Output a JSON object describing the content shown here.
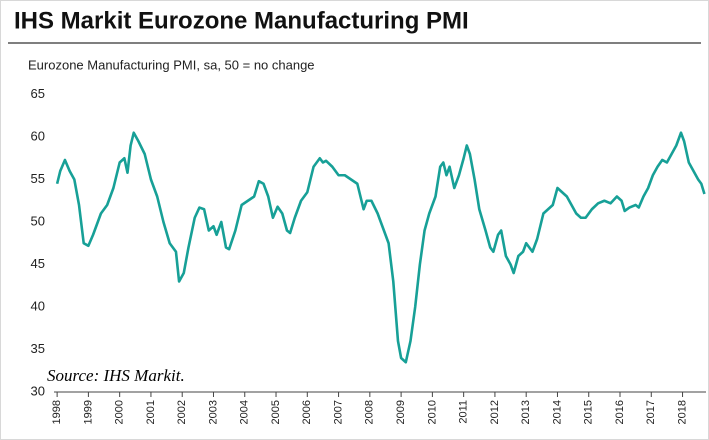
{
  "chart_data": {
    "type": "line",
    "title": "IHS Markit Eurozone Manufacturing PMI",
    "subtitle": "Eurozone Manufacturing PMI, sa, 50 = no change",
    "annotation": "Source: IHS Markit.",
    "color": "#17a097",
    "xlim": [
      1997.9,
      2018.75
    ],
    "xticks": [
      1998,
      1999,
      2000,
      2001,
      2002,
      2003,
      2004,
      2005,
      2006,
      2007,
      2008,
      2009,
      2010,
      2011,
      2012,
      2013,
      2014,
      2015,
      2016,
      2017,
      2018
    ],
    "ylim": [
      30,
      65
    ],
    "yticks": [
      30,
      35,
      40,
      45,
      50,
      55,
      60,
      65
    ],
    "grid": false,
    "x": [
      1998.0,
      1998.1,
      1998.25,
      1998.4,
      1998.55,
      1998.7,
      1998.85,
      1999.0,
      1999.15,
      1999.4,
      1999.6,
      1999.8,
      2000.0,
      2000.15,
      2000.25,
      2000.35,
      2000.45,
      2000.6,
      2000.8,
      2001.0,
      2001.2,
      2001.4,
      2001.6,
      2001.8,
      2001.9,
      2002.05,
      2002.2,
      2002.4,
      2002.55,
      2002.7,
      2002.85,
      2003.0,
      2003.1,
      2003.25,
      2003.4,
      2003.5,
      2003.7,
      2003.9,
      2004.1,
      2004.3,
      2004.45,
      2004.6,
      2004.75,
      2004.9,
      2005.05,
      2005.2,
      2005.35,
      2005.45,
      2005.6,
      2005.8,
      2006.0,
      2006.2,
      2006.4,
      2006.5,
      2006.6,
      2006.8,
      2007.0,
      2007.2,
      2007.4,
      2007.6,
      2007.8,
      2007.9,
      2008.05,
      2008.25,
      2008.45,
      2008.6,
      2008.75,
      2008.9,
      2009.0,
      2009.15,
      2009.3,
      2009.45,
      2009.6,
      2009.75,
      2009.9,
      2010.1,
      2010.25,
      2010.35,
      2010.45,
      2010.55,
      2010.7,
      2010.85,
      2011.0,
      2011.1,
      2011.2,
      2011.35,
      2011.5,
      2011.7,
      2011.85,
      2011.95,
      2012.1,
      2012.2,
      2012.35,
      2012.5,
      2012.6,
      2012.75,
      2012.9,
      2013.0,
      2013.2,
      2013.35,
      2013.55,
      2013.7,
      2013.85,
      2014.0,
      2014.15,
      2014.3,
      2014.45,
      2014.6,
      2014.75,
      2014.9,
      2015.1,
      2015.3,
      2015.5,
      2015.7,
      2015.9,
      2016.05,
      2016.15,
      2016.3,
      2016.5,
      2016.6,
      2016.75,
      2016.9,
      2017.05,
      2017.2,
      2017.35,
      2017.5,
      2017.65,
      2017.8,
      2017.95,
      2018.05,
      2018.2,
      2018.35,
      2018.5,
      2018.6,
      2018.7
    ],
    "values": [
      54.5,
      56,
      57.3,
      56,
      55,
      52,
      47.5,
      47.2,
      48.5,
      51,
      52,
      54,
      57,
      57.5,
      55.8,
      59,
      60.5,
      59.5,
      58,
      55,
      53,
      50,
      47.5,
      46.5,
      43,
      44,
      47,
      50.5,
      51.7,
      51.5,
      49,
      49.5,
      48.5,
      50,
      47,
      46.8,
      49,
      52,
      52.5,
      53,
      54.8,
      54.5,
      53,
      50.5,
      51.8,
      51,
      49,
      48.7,
      50.5,
      52.5,
      53.5,
      56.5,
      57.5,
      57,
      57.2,
      56.5,
      55.5,
      55.5,
      55,
      54.5,
      51.5,
      52.5,
      52.5,
      51,
      49,
      47.5,
      43,
      36,
      34,
      33.5,
      36,
      40,
      45,
      49,
      51,
      53,
      56.5,
      57,
      55.5,
      56.5,
      54,
      55.5,
      57.5,
      59,
      58,
      55,
      51.5,
      49,
      47,
      46.5,
      48.5,
      49,
      46,
      45,
      44,
      46,
      46.5,
      47.5,
      46.5,
      48,
      51,
      51.5,
      52,
      54,
      53.5,
      53,
      52,
      51,
      50.5,
      50.5,
      51.5,
      52.2,
      52.5,
      52.2,
      53,
      52.5,
      51.3,
      51.7,
      52,
      51.7,
      53,
      54,
      55.5,
      56.5,
      57.3,
      57,
      58,
      59,
      60.5,
      59.5,
      57,
      56,
      55,
      54.5,
      53.3
    ]
  }
}
